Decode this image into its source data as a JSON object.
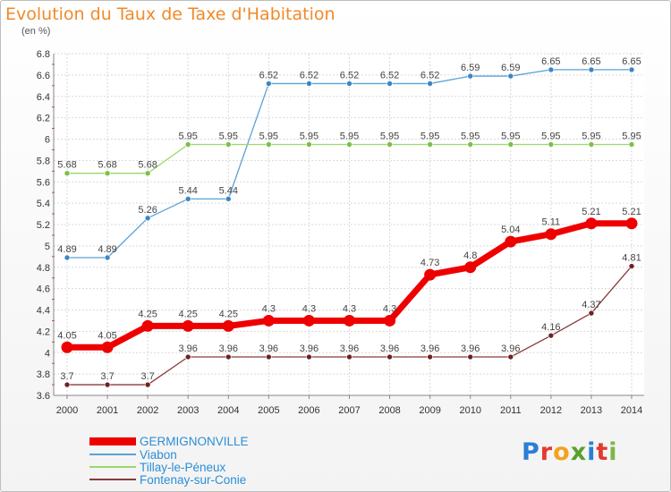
{
  "title": "Evolution du Taux de Taxe d'Habitation",
  "subtitle": "(en %)",
  "logo": {
    "text": "Proxiti",
    "colors": [
      "#2a7fd4",
      "#e23a2e",
      "#f4a21d",
      "#5aa02c",
      "#2a7fd4",
      "#e23a2e",
      "#7ab648"
    ]
  },
  "chart_data": {
    "type": "line",
    "x": [
      "2000",
      "2001",
      "2002",
      "2003",
      "2004",
      "2005",
      "2006",
      "2007",
      "2008",
      "2009",
      "2010",
      "2011",
      "2012",
      "2013",
      "2014"
    ],
    "ylim": [
      3.6,
      6.8
    ],
    "yticks": [
      "3.6",
      "3.8",
      "4",
      "4.2",
      "4.4",
      "4.6",
      "4.8",
      "5",
      "5.2",
      "5.4",
      "5.6",
      "5.8",
      "6",
      "6.2",
      "6.4",
      "6.6",
      "6.8"
    ],
    "grid": true,
    "legend": "bottom-left",
    "series": [
      {
        "name": "GERMIGNONVILLE",
        "color": "#ee0000",
        "dot": "#ee0000",
        "width": 7,
        "radius": 6.5,
        "values": [
          4.05,
          4.05,
          4.25,
          4.25,
          4.25,
          4.3,
          4.3,
          4.3,
          4.3,
          4.73,
          4.8,
          5.04,
          5.11,
          5.21,
          5.21
        ],
        "labels": [
          "4.05",
          "4.05",
          "4.25",
          "4.25",
          "4.25",
          "4.3",
          "4.3",
          "4.3",
          "4.3",
          "4.73",
          "4.8",
          "5.04",
          "5.11",
          "5.21",
          "5.21"
        ]
      },
      {
        "name": "Viabon",
        "color": "#5aa2d8",
        "dot": "#3a86c8",
        "width": 1.3,
        "radius": 3,
        "values": [
          4.89,
          4.89,
          5.26,
          5.44,
          5.44,
          6.52,
          6.52,
          6.52,
          6.52,
          6.52,
          6.59,
          6.59,
          6.65,
          6.65,
          6.65
        ],
        "labels": [
          "4.89",
          "4.89",
          "5.26",
          "5.44",
          "5.44",
          "6.52",
          "6.52",
          "6.52",
          "6.52",
          "6.52",
          "6.59",
          "6.59",
          "6.65",
          "6.65",
          "6.65"
        ]
      },
      {
        "name": "Tillay-le-Péneux",
        "color": "#9ad86a",
        "dot": "#7cc044",
        "width": 1.3,
        "radius": 3,
        "values": [
          5.68,
          5.68,
          5.68,
          5.95,
          5.95,
          5.95,
          5.95,
          5.95,
          5.95,
          5.95,
          5.95,
          5.95,
          5.95,
          5.95,
          5.95
        ],
        "labels": [
          "5.68",
          "5.68",
          "5.68",
          "5.95",
          "5.95",
          "5.95",
          "5.95",
          "5.95",
          "5.95",
          "5.95",
          "5.95",
          "5.95",
          "5.95",
          "5.95",
          "5.95"
        ]
      },
      {
        "name": "Fontenay-sur-Conie",
        "color": "#8a3a3a",
        "dot": "#6e2222",
        "width": 1.3,
        "radius": 3,
        "values": [
          3.7,
          3.7,
          3.7,
          3.96,
          3.96,
          3.96,
          3.96,
          3.96,
          3.96,
          3.96,
          3.96,
          3.96,
          4.16,
          4.37,
          4.81
        ],
        "labels": [
          "3.7",
          "3.7",
          "3.7",
          "3.96",
          "3.96",
          "3.96",
          "3.96",
          "3.96",
          "3.96",
          "3.96",
          "3.96",
          "3.96",
          "4.16",
          "4.37",
          "4.81"
        ]
      }
    ]
  }
}
